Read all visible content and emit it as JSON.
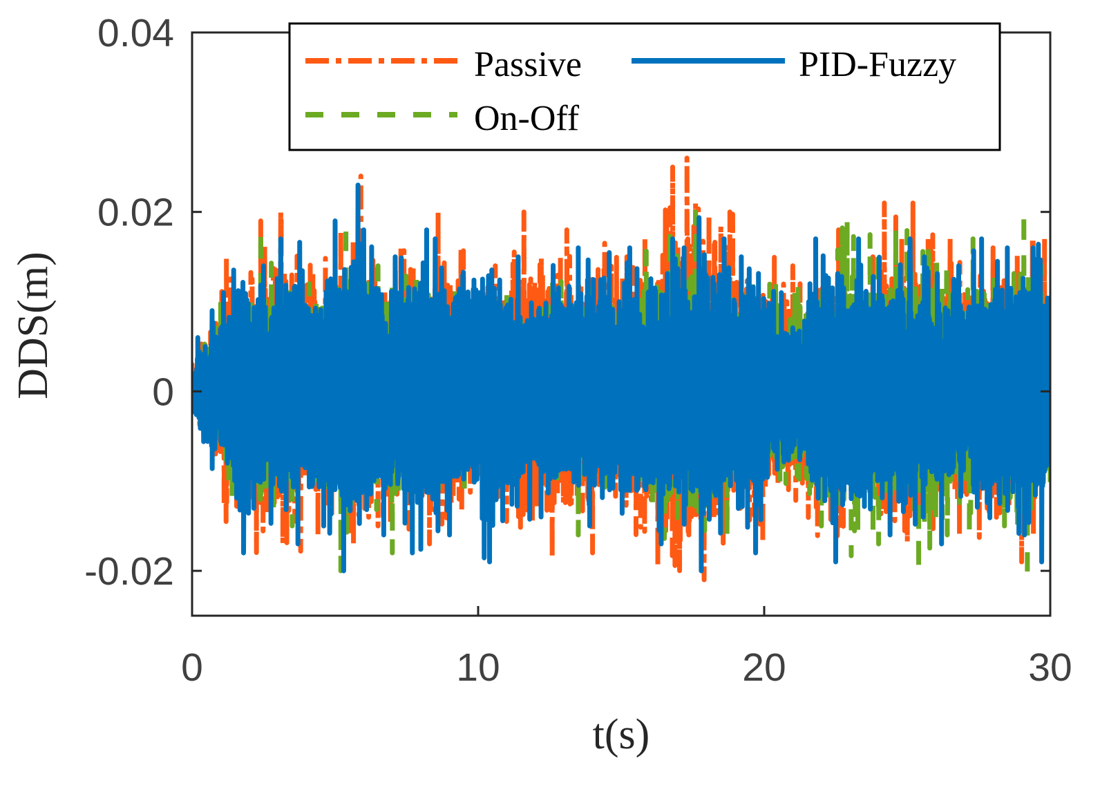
{
  "chart_data": {
    "type": "line",
    "title": "",
    "xlabel": "t(s)",
    "ylabel": "DDS(m)",
    "xlim": [
      0,
      30
    ],
    "ylim": [
      -0.025,
      0.04
    ],
    "xticks": [
      0,
      10,
      20,
      30
    ],
    "xtick_labels": [
      "0",
      "10",
      "20",
      "30"
    ],
    "yticks": [
      -0.02,
      0,
      0.02,
      0.04
    ],
    "ytick_labels": [
      "-0.02",
      "0",
      "0.02",
      "0.04"
    ],
    "grid": false,
    "legend_position": "top-right",
    "series": [
      {
        "name": "Passive",
        "color": "#FF5A14",
        "style": "dash-dot",
        "x": [
          0,
          1.2,
          2.4,
          3.1,
          4.4,
          5.2,
          5.9,
          6.5,
          7.3,
          8.3,
          8.6,
          9.4,
          10.6,
          11.6,
          13.1,
          14.0,
          15.2,
          16.8,
          17.3,
          17.6,
          17.9,
          18.8,
          19.7,
          21.0,
          22.6,
          23.8,
          24.2,
          25.2,
          26.5,
          28.0,
          29.0,
          29.4,
          29.8,
          30
        ],
        "values": [
          0.003,
          0.015,
          0.019,
          0.02,
          -0.016,
          0.018,
          0.024,
          -0.015,
          0.016,
          -0.017,
          0.02,
          0.016,
          0.014,
          0.02,
          0.018,
          -0.018,
          0.015,
          0.025,
          0.026,
          0.021,
          -0.021,
          0.02,
          -0.018,
          0.014,
          0.018,
          0.015,
          0.021,
          0.021,
          0.017,
          0.016,
          -0.019,
          0.017,
          0.017,
          -0.009
        ]
      },
      {
        "name": "On-Off",
        "color": "#6BAA22",
        "style": "dashed",
        "x": [
          0,
          1.0,
          2.4,
          3.5,
          4.1,
          4.6,
          5.2,
          6.5,
          7.0,
          8.5,
          9.2,
          11.0,
          12.6,
          13.5,
          14.6,
          16.7,
          17.6,
          18.7,
          19.6,
          20.4,
          22.0,
          22.9,
          24.0,
          24.6,
          25.4,
          26.4,
          27.3,
          28.4,
          29.2,
          29.7,
          30
        ],
        "values": [
          0.002,
          0.01,
          0.018,
          -0.015,
          0.012,
          -0.015,
          -0.02,
          0.014,
          -0.018,
          0.012,
          0.012,
          0.011,
          0.012,
          -0.016,
          0.012,
          0.018,
          0.02,
          -0.016,
          0.012,
          0.012,
          -0.015,
          0.019,
          -0.017,
          0.018,
          -0.02,
          -0.016,
          0.017,
          -0.015,
          -0.021,
          0.014,
          -0.011
        ]
      },
      {
        "name": "PID-Fuzzy",
        "color": "#0072BD",
        "style": "solid",
        "x": [
          0,
          0.2,
          0.7,
          1.1,
          1.8,
          2.5,
          3.1,
          3.7,
          4.6,
          5.0,
          5.3,
          5.8,
          6.0,
          6.7,
          7.1,
          7.7,
          8.2,
          8.5,
          9.0,
          10.4,
          11.4,
          12.2,
          13.5,
          13.9,
          15.3,
          16.4,
          16.8,
          17.2,
          17.8,
          18.6,
          19.2,
          19.7,
          20.6,
          21.6,
          21.8,
          22.5,
          23.3,
          24.4,
          25.1,
          25.6,
          26.2,
          26.8,
          27.6,
          28.5,
          29.1,
          29.4,
          29.7,
          30
        ],
        "values": [
          0.001,
          0.006,
          0.009,
          0.011,
          -0.018,
          0.014,
          0.017,
          -0.017,
          -0.015,
          0.019,
          -0.02,
          0.023,
          0.018,
          -0.016,
          0.015,
          -0.018,
          0.018,
          0.017,
          -0.016,
          -0.019,
          0.015,
          -0.014,
          0.016,
          -0.015,
          0.016,
          -0.017,
          0.017,
          0.016,
          -0.02,
          0.017,
          0.015,
          -0.018,
          0.011,
          0.012,
          0.017,
          -0.019,
          0.017,
          -0.016,
          0.017,
          0.015,
          -0.017,
          0.014,
          0.017,
          0.016,
          -0.016,
          0.016,
          -0.019,
          -0.008
        ]
      }
    ]
  },
  "legend": {
    "passive": "Passive",
    "pid_fuzzy": "PID-Fuzzy",
    "on_off": "On-Off"
  }
}
